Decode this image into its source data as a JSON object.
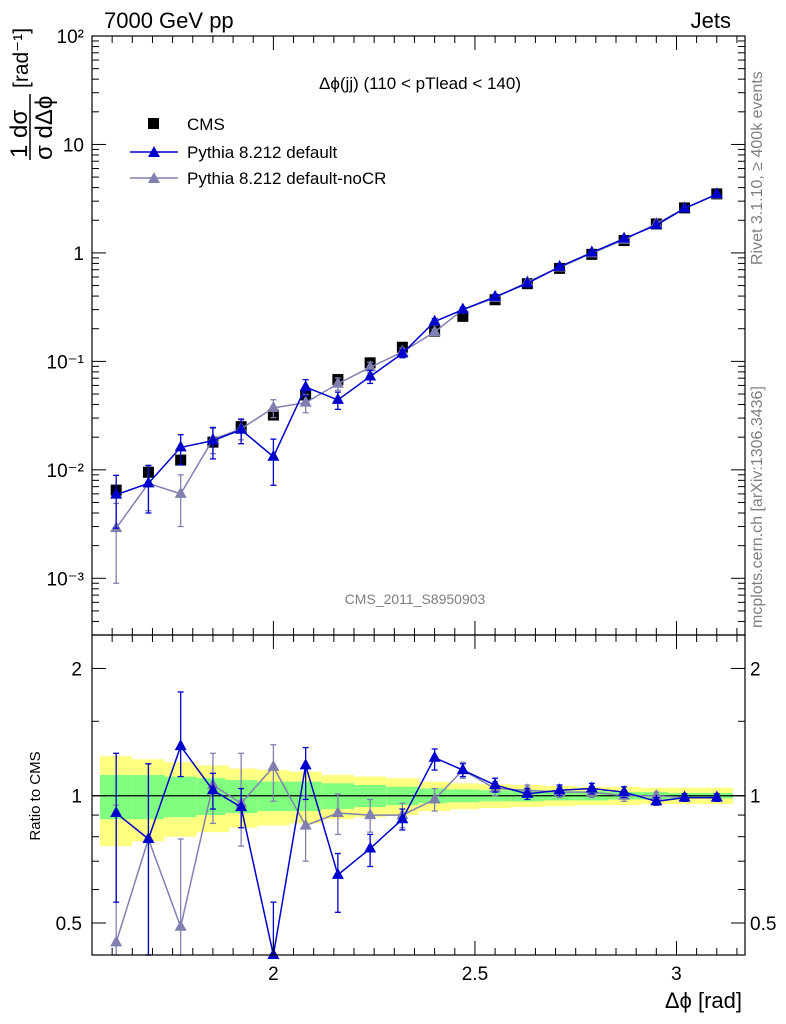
{
  "header": {
    "left": "7000 GeV pp",
    "right": "Jets"
  },
  "side_labels": {
    "top": "Rivet 3.1.10, ≥ 400k events",
    "bottom": "mcplots.cern.ch [arXiv:1306.3436]"
  },
  "colors": {
    "data": "#000000",
    "default": "#0000cc",
    "nocr": "#8080b0",
    "band_inner": "#80ff80",
    "band_outer": "#ffff80"
  },
  "chart_data": [
    {
      "type": "scatter",
      "title": "Δϕ(jj) (110 < pTlead <  140)",
      "watermark": "CMS_2011_S8950903",
      "ylabel": "1/σ dσ/dΔϕ [rad⁻¹]",
      "xlabel": "Δϕ [rad]",
      "yscale": "log",
      "xlim": [
        1.55,
        3.17
      ],
      "ylim": [
        0.0003,
        100
      ],
      "y_ticks": [
        "10⁻³",
        "10⁻²",
        "10⁻¹",
        "1",
        "10",
        "10²"
      ],
      "legend": [
        "CMS",
        "Pythia 8.212 default",
        "Pythia 8.212 default-noCR"
      ],
      "x": [
        1.61,
        1.69,
        1.77,
        1.85,
        1.92,
        2.0,
        2.08,
        2.16,
        2.24,
        2.32,
        2.4,
        2.47,
        2.55,
        2.63,
        2.71,
        2.79,
        2.87,
        2.95,
        3.02,
        3.1
      ],
      "series": [
        {
          "name": "CMS",
          "values": [
            0.0065,
            0.0095,
            0.0123,
            0.018,
            0.025,
            0.032,
            0.049,
            0.068,
            0.097,
            0.135,
            0.19,
            0.26,
            0.37,
            0.52,
            0.72,
            0.97,
            1.3,
            1.85,
            2.6,
            3.5
          ]
        },
        {
          "name": "Pythia 8.212 default",
          "values": [
            0.0059,
            0.0075,
            0.0161,
            0.0186,
            0.0234,
            0.0132,
            0.0579,
            0.0441,
            0.0726,
            0.1181,
            0.2328,
            0.2998,
            0.3937,
            0.5242,
            0.7437,
            1.0087,
            1.3536,
            1.8019,
            2.5689,
            3.4799
          ]
        },
        {
          "name": "Pythia 8.212 default-noCR",
          "values": [
            0.0029,
            0.0075,
            0.006,
            0.0191,
            0.0239,
            0.0373,
            0.0416,
            0.0622,
            0.0881,
            0.1222,
            0.1865,
            0.2997,
            0.3858,
            0.5389,
            0.7344,
            0.9914,
            1.3209,
            1.8598,
            2.5713,
            3.458
          ]
        }
      ],
      "errors_default": [
        0.003,
        0.0035,
        0.005,
        0.006,
        0.006,
        0.006,
        0.01,
        0.008,
        0.01,
        0.01,
        0.015,
        0.015,
        0.02,
        0.02,
        0.03,
        0.04,
        0.05,
        0.06,
        0.06,
        0.08
      ],
      "errors_nocr": [
        0.002,
        0.0033,
        0.003,
        0.005,
        0.005,
        0.007,
        0.008,
        0.008,
        0.01,
        0.01,
        0.012,
        0.015,
        0.02,
        0.02,
        0.03,
        0.04,
        0.05,
        0.06,
        0.06,
        0.08
      ]
    },
    {
      "type": "line",
      "ylabel": "Ratio to CMS",
      "xlabel": "Δϕ [rad]",
      "yscale": "log",
      "xlim": [
        1.55,
        3.17
      ],
      "ylim": [
        0.42,
        2.4
      ],
      "y_ticks": [
        "0.5",
        "1",
        "2"
      ],
      "x_ticks": [
        "2",
        "2.5",
        "3"
      ],
      "x": [
        1.61,
        1.69,
        1.77,
        1.85,
        1.92,
        2.0,
        2.08,
        2.16,
        2.24,
        2.32,
        2.4,
        2.47,
        2.55,
        2.63,
        2.71,
        2.79,
        2.87,
        2.95,
        3.02,
        3.1
      ],
      "band_inner": [
        0.12,
        0.12,
        0.11,
        0.1,
        0.09,
        0.08,
        0.08,
        0.07,
        0.06,
        0.05,
        0.04,
        0.035,
        0.03,
        0.03,
        0.025,
        0.025,
        0.02,
        0.02,
        0.015,
        0.015
      ],
      "band_outer": [
        0.24,
        0.22,
        0.2,
        0.18,
        0.16,
        0.15,
        0.14,
        0.12,
        0.11,
        0.1,
        0.08,
        0.07,
        0.065,
        0.06,
        0.055,
        0.05,
        0.05,
        0.045,
        0.045,
        0.045
      ],
      "series": [
        {
          "name": "Pythia 8.212 default",
          "values": [
            0.91,
            0.79,
            1.31,
            1.03,
            0.94,
            0.41,
            1.18,
            0.65,
            0.75,
            0.88,
            1.23,
            1.15,
            1.06,
            1.01,
            1.03,
            1.04,
            1.02,
            0.97,
            0.99,
            0.99
          ]
        },
        {
          "name": "Pythia 8.212 default-noCR",
          "values": [
            0.45,
            0.79,
            0.49,
            1.06,
            0.96,
            1.17,
            0.85,
            0.91,
            0.9,
            0.9,
            0.98,
            1.15,
            1.04,
            1.03,
            1.02,
            1.02,
            1.0,
            1.0,
            0.99,
            0.99
          ]
        }
      ],
      "err_up_default": [
        0.35,
        0.4,
        0.45,
        0.1,
        0.1,
        0.15,
        0.12,
        0.08,
        0.06,
        0.05,
        0.06,
        0.04,
        0.04,
        0.03,
        0.03,
        0.03,
        0.03,
        0.02,
        0.02,
        0.02
      ],
      "err_dn_default": [
        0.35,
        0.4,
        0.2,
        0.1,
        0.1,
        0.15,
        0.2,
        0.12,
        0.07,
        0.05,
        0.08,
        0.04,
        0.04,
        0.03,
        0.03,
        0.03,
        0.03,
        0.02,
        0.02,
        0.02
      ],
      "err_up_nocr": [
        0.5,
        0.4,
        0.3,
        0.2,
        0.3,
        0.15,
        0.15,
        0.1,
        0.08,
        0.06,
        0.06,
        0.05,
        0.04,
        0.03,
        0.03,
        0.03,
        0.03,
        0.02,
        0.02,
        0.02
      ],
      "err_dn_nocr": [
        0.3,
        0.4,
        0.2,
        0.2,
        0.2,
        0.2,
        0.15,
        0.1,
        0.08,
        0.06,
        0.06,
        0.05,
        0.04,
        0.03,
        0.03,
        0.03,
        0.03,
        0.02,
        0.02,
        0.02
      ]
    }
  ]
}
